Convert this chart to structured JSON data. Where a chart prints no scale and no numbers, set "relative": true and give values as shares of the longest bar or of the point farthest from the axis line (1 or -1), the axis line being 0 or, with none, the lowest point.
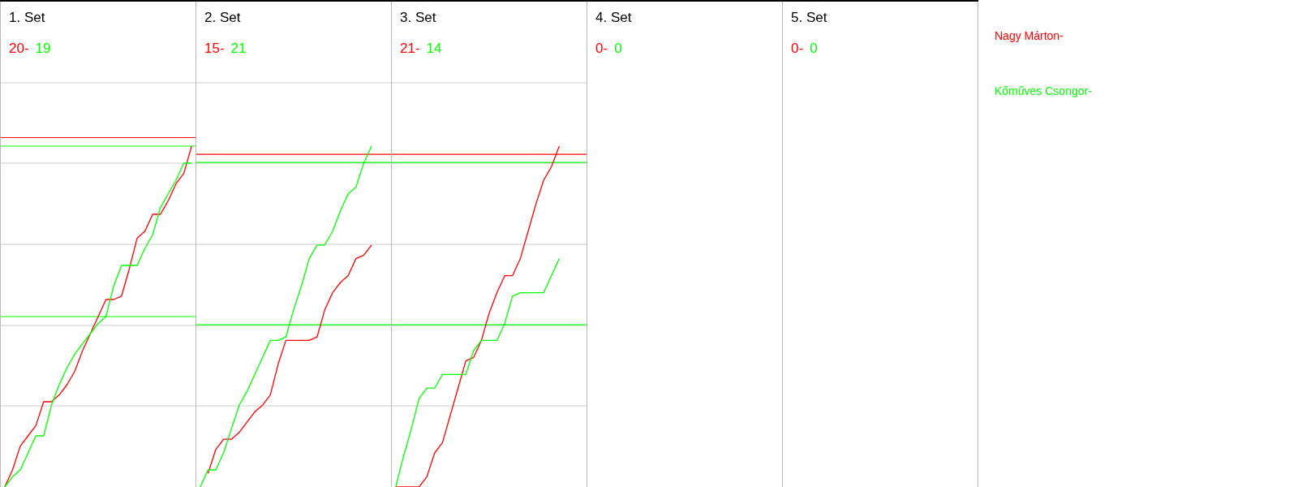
{
  "chart_data": [
    {
      "type": "line",
      "relative": true,
      "tick_labels": false,
      "grid": true,
      "title": "1. Set",
      "annotations": [
        "20-",
        "19"
      ],
      "categories": [
        null,
        null,
        null,
        null,
        null,
        null,
        null,
        null,
        null,
        null,
        null,
        null,
        null,
        null,
        null,
        null,
        null,
        null,
        null,
        null,
        null,
        null,
        null,
        null,
        null
      ],
      "ref_lines": [
        {
          "axis": "y",
          "value": 1.025,
          "color": "#ff0000"
        },
        {
          "axis": "y",
          "value": 1,
          "color": "#00ff00"
        },
        {
          "axis": "y",
          "value": 0.5,
          "color": "#00ff00"
        }
      ],
      "series": [
        {
          "name": "Nagy Márton-",
          "color": "#ff0000",
          "values": [
            0,
            0.05,
            0.12,
            0.15,
            0.18,
            0.25,
            0.25,
            0.27,
            0.3,
            0.34,
            0.4,
            0.45,
            0.5,
            0.55,
            0.55,
            0.56,
            0.64,
            0.73,
            0.75,
            0.8,
            0.8,
            0.84,
            0.89,
            0.92,
            1
          ]
        },
        {
          "name": "Kőműves Csongor-",
          "color": "#00ff00",
          "values": [
            0,
            0.03,
            0.05,
            0.1,
            0.15,
            0.15,
            0.24,
            0.3,
            0.35,
            0.39,
            0.42,
            0.45,
            0.48,
            0.5,
            0.59,
            0.65,
            0.65,
            0.65,
            0.7,
            0.74,
            0.82,
            0.86,
            0.9,
            0.95,
            0.95
          ]
        }
      ]
    },
    {
      "type": "line",
      "relative": true,
      "tick_labels": false,
      "grid": true,
      "title": "2. Set",
      "annotations": [
        "15-",
        "21"
      ],
      "categories": [
        null,
        null,
        null,
        null,
        null,
        null,
        null,
        null,
        null,
        null,
        null,
        null,
        null,
        null,
        null,
        null,
        null,
        null,
        null,
        null,
        null,
        null,
        null,
        null,
        null
      ],
      "ref_lines": [
        {
          "axis": "y",
          "value": 0.976,
          "color": "#ff0000"
        },
        {
          "axis": "y",
          "value": 0.952,
          "color": "#00ff00"
        },
        {
          "axis": "y",
          "value": 0.476,
          "color": "#00ff00"
        }
      ],
      "series": [
        {
          "color": "#ff0000",
          "values": [
            null,
            0.04,
            0.11,
            0.14,
            0.14,
            0.16,
            0.19,
            0.22,
            0.24,
            0.27,
            0.36,
            0.43,
            0.43,
            0.43,
            0.43,
            0.44,
            0.52,
            0.57,
            0.6,
            0.62,
            0.67,
            0.68,
            0.71,
            null,
            null
          ]
        },
        {
          "color": "#00ff00",
          "values": [
            0,
            0.05,
            0.05,
            0.1,
            0.17,
            0.24,
            0.28,
            0.33,
            0.38,
            0.43,
            0.43,
            0.44,
            0.52,
            0.59,
            0.67,
            0.71,
            0.71,
            0.75,
            0.81,
            0.86,
            0.88,
            0.95,
            1,
            null,
            null
          ]
        }
      ]
    },
    {
      "type": "line",
      "relative": true,
      "tick_labels": false,
      "grid": true,
      "title": "3. Set",
      "annotations": [
        "21-",
        "14"
      ],
      "categories": [
        null,
        null,
        null,
        null,
        null,
        null,
        null,
        null,
        null,
        null,
        null,
        null,
        null,
        null,
        null,
        null,
        null,
        null,
        null,
        null,
        null,
        null,
        null,
        null,
        null
      ],
      "ref_lines": [
        {
          "axis": "y",
          "value": 0.976,
          "color": "#ff0000"
        },
        {
          "axis": "y",
          "value": 0.952,
          "color": "#00ff00"
        },
        {
          "axis": "y",
          "value": 0.476,
          "color": "#00ff00"
        }
      ],
      "series": [
        {
          "color": "#ff0000",
          "values": [
            0,
            0,
            0,
            0,
            0.03,
            0.1,
            0.13,
            0.21,
            0.29,
            0.37,
            0.38,
            0.43,
            0.51,
            0.57,
            0.62,
            0.62,
            0.67,
            0.75,
            0.83,
            0.9,
            0.94,
            1,
            null,
            null,
            null
          ]
        },
        {
          "color": "#00ff00",
          "values": [
            0,
            0.09,
            0.17,
            0.26,
            0.29,
            0.29,
            0.33,
            0.33,
            0.33,
            0.33,
            0.4,
            0.43,
            0.43,
            0.43,
            0.48,
            0.56,
            0.57,
            0.57,
            0.57,
            0.57,
            0.62,
            0.67,
            null,
            null,
            null
          ]
        }
      ]
    },
    {
      "type": "other",
      "title": "4. Set",
      "annotations": [
        "0-",
        "0"
      ]
    },
    {
      "type": "other",
      "title": "5. Set",
      "annotations": [
        "0-",
        "0"
      ]
    }
  ]
}
